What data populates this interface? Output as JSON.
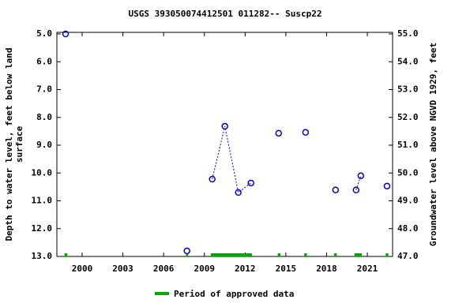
{
  "chart_data": {
    "type": "scatter",
    "title": "USGS 393050074412501 011282-- Suscp22",
    "y_label": [
      "Depth to water level, feet below land",
      "surface"
    ],
    "y2_label": "Groundwater level above NGVD 1929, feet",
    "x": [
      1998.78,
      2007.72,
      2009.58,
      2010.51,
      2011.5,
      2012.43,
      2014.47,
      2016.45,
      2018.66,
      2020.17,
      2020.52,
      2022.45
    ],
    "values": [
      5.0,
      12.8,
      10.22,
      8.32,
      10.7,
      10.36,
      8.57,
      8.54,
      10.61,
      10.61,
      10.1,
      10.47
    ],
    "color": "#0000cc",
    "xlim": [
      1998.14,
      2022.86
    ],
    "xticks": [
      2000,
      2003,
      2006,
      2009,
      2012,
      2015,
      2018,
      2021
    ],
    "ylim": [
      13,
      5
    ],
    "yticks": [
      {
        "value": 5,
        "label": "5.0"
      },
      {
        "value": 6,
        "label": "6.0"
      },
      {
        "value": 7,
        "label": "7.0"
      },
      {
        "value": 8,
        "label": "8.0"
      },
      {
        "value": 9,
        "label": "9.0"
      },
      {
        "value": 10,
        "label": "10.0"
      },
      {
        "value": 11,
        "label": "11.0"
      },
      {
        "value": 12,
        "label": "12.0"
      },
      {
        "value": 13,
        "label": "13.0"
      }
    ],
    "y2lim": [
      47,
      55
    ],
    "y2ticks": [
      {
        "value": 47,
        "label": "47.0"
      },
      {
        "value": 48,
        "label": "48.0"
      },
      {
        "value": 49,
        "label": "49.0"
      },
      {
        "value": 50,
        "label": "50.0"
      },
      {
        "value": 51,
        "label": "51.0"
      },
      {
        "value": 52,
        "label": "52.0"
      },
      {
        "value": 53,
        "label": "53.0"
      },
      {
        "value": 54,
        "label": "54.0"
      },
      {
        "value": 55,
        "label": "55.0"
      }
    ],
    "approved_periods": [
      [
        1998.7,
        1998.9
      ],
      [
        2007.65,
        2007.8
      ],
      [
        2009.47,
        2012.5
      ],
      [
        2014.4,
        2014.6
      ],
      [
        2016.35,
        2016.55
      ],
      [
        2018.55,
        2018.75
      ],
      [
        2020.05,
        2020.6
      ],
      [
        2022.35,
        2022.55
      ]
    ],
    "approved_color": "#00aa00",
    "legend_label": "Period of approved data"
  }
}
